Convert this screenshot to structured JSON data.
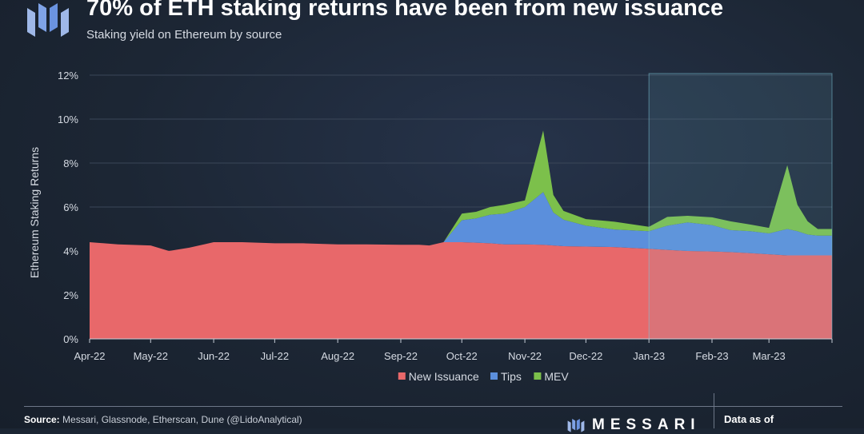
{
  "header": {
    "title": "70% of ETH staking returns have been from new issuance",
    "subtitle": "Staking yield on Ethereum by source"
  },
  "footer": {
    "source_label": "Source:",
    "source_text": "Messari, Glassnode, Etherscan, Dune (@LidoAnalytical)",
    "brand": "MESSARI",
    "data_as_of": "Data as of"
  },
  "colors": {
    "new_issuance": "#e8686a",
    "tips": "#5b8fdc",
    "mev": "#7cc04b",
    "highlight": "#7cc3d6"
  },
  "chart_data": {
    "type": "area",
    "stacked": true,
    "ylabel": "Ethereum Staking Returns",
    "ylim": [
      0,
      12
    ],
    "yticks": [
      "0%",
      "2%",
      "4%",
      "6%",
      "8%",
      "10%",
      "12%"
    ],
    "xlim": [
      "2022-04-01",
      "2023-04-01"
    ],
    "xticks": [
      "Apr-22",
      "May-22",
      "Jun-22",
      "Jul-22",
      "Aug-22",
      "Sep-22",
      "Oct-22",
      "Nov-22",
      "Dec-22",
      "Jan-23",
      "Feb-23",
      "Mar-23"
    ],
    "legend": {
      "position": "bottom",
      "entries": [
        "New Issuance",
        "Tips",
        "MEV"
      ]
    },
    "grid": true,
    "highlight_region": [
      "2023-01-01",
      "2023-04-01"
    ],
    "x": [
      "2022-04-01",
      "2022-04-15",
      "2022-05-01",
      "2022-05-10",
      "2022-05-20",
      "2022-06-01",
      "2022-06-15",
      "2022-07-01",
      "2022-07-15",
      "2022-08-01",
      "2022-08-15",
      "2022-09-01",
      "2022-09-10",
      "2022-09-15",
      "2022-09-22",
      "2022-10-01",
      "2022-10-08",
      "2022-10-15",
      "2022-10-22",
      "2022-11-01",
      "2022-11-10",
      "2022-11-15",
      "2022-11-20",
      "2022-12-01",
      "2022-12-15",
      "2023-01-01",
      "2023-01-10",
      "2023-01-20",
      "2023-02-01",
      "2023-02-10",
      "2023-02-20",
      "2023-03-01",
      "2023-03-10",
      "2023-03-15",
      "2023-03-20",
      "2023-03-25",
      "2023-04-01"
    ],
    "series": [
      {
        "name": "New Issuance",
        "values": [
          4.4,
          4.3,
          4.25,
          4.0,
          4.15,
          4.4,
          4.4,
          4.35,
          4.35,
          4.3,
          4.3,
          4.28,
          4.28,
          4.25,
          4.4,
          4.4,
          4.38,
          4.35,
          4.3,
          4.3,
          4.28,
          4.25,
          4.22,
          4.2,
          4.18,
          4.1,
          4.05,
          4.0,
          3.98,
          3.95,
          3.9,
          3.85,
          3.8,
          3.8,
          3.8,
          3.8,
          3.8
        ]
      },
      {
        "name": "Tips",
        "values": [
          0,
          0,
          0,
          0,
          0,
          0,
          0,
          0,
          0,
          0,
          0,
          0,
          0,
          0,
          0,
          1.0,
          1.1,
          1.3,
          1.4,
          1.7,
          2.4,
          1.5,
          1.2,
          0.95,
          0.8,
          0.8,
          1.1,
          1.3,
          1.2,
          1.0,
          1.0,
          0.95,
          1.2,
          1.1,
          0.95,
          0.9,
          0.9
        ]
      },
      {
        "name": "MEV",
        "values": [
          0,
          0,
          0,
          0,
          0,
          0,
          0,
          0,
          0,
          0,
          0,
          0,
          0,
          0,
          0,
          0.3,
          0.3,
          0.35,
          0.4,
          0.3,
          2.8,
          0.8,
          0.4,
          0.3,
          0.35,
          0.2,
          0.4,
          0.3,
          0.35,
          0.4,
          0.3,
          0.25,
          2.9,
          1.2,
          0.6,
          0.3,
          0.3
        ]
      }
    ]
  }
}
